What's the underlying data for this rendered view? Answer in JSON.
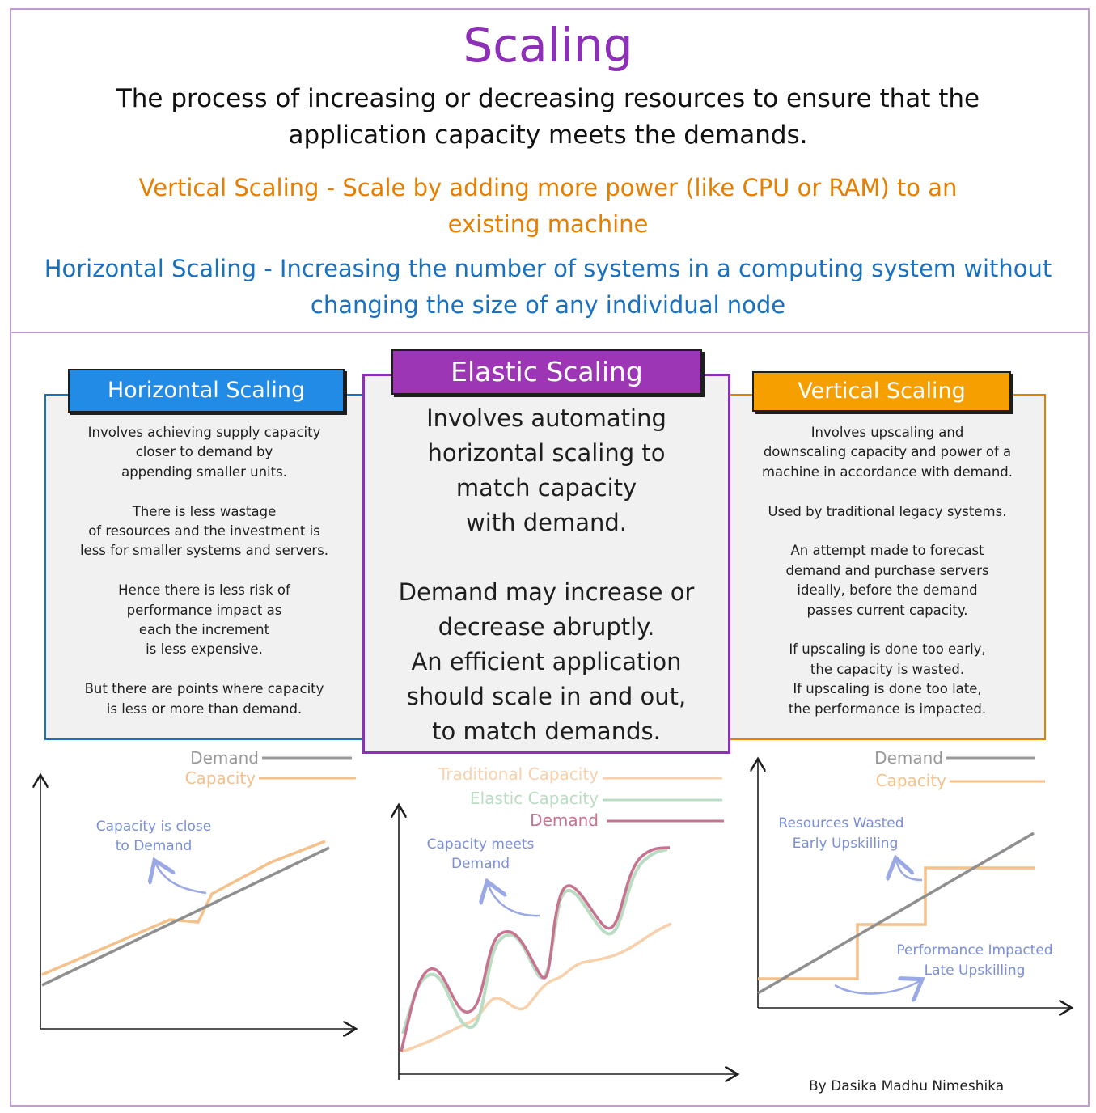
{
  "title": "Scaling",
  "subtitle": "The process of increasing or decreasing resources to ensure that the application capacity meets the demands.",
  "vertical_definition": "Vertical Scaling - Scale by adding more power (like CPU or RAM) to an existing machine",
  "horizontal_definition": "Horizontal Scaling - Increasing the number of systems in a computing system without changing the size of any individual node",
  "colors": {
    "accent": "#8e2fb8",
    "horizontal": "#1971c2",
    "vertical": "#e67e00",
    "demand": "#999999",
    "capacity": "#f5c08a",
    "elastic": "#b9dcc2",
    "elastic_demand": "#c7728f",
    "note": "#7b8fd8"
  },
  "panels": {
    "horizontal": {
      "label": "Horizontal Scaling",
      "body": "Involves achieving supply capacity\ncloser to demand by\nappending smaller units.\n\nThere is less wastage\nof resources and  the investment is\nless for smaller systems and servers.\n\nHence there is less risk of\nperformance impact as\neach the increment\nis less expensive.\n\nBut there are points where capacity\nis less or more than demand."
    },
    "elastic": {
      "label": "Elastic Scaling",
      "body": "Involves automating\nhorizontal scaling to\nmatch capacity\nwith demand.\n\nDemand may increase or\ndecrease abruptly.\nAn efficient application\nshould scale in and out,\nto match demands."
    },
    "vertical": {
      "label": "Vertical Scaling",
      "body": "Involves upscaling and\ndownscaling capacity and power of a\nmachine in accordance with demand.\n\nUsed by traditional legacy systems.\n\nAn attempt made to forecast\ndemand and purchase servers\nideally, before the demand\npasses current capacity.\n\nIf upscaling is done too early,\nthe capacity is wasted.\nIf upscaling is done too late,\nthe performance is impacted."
    }
  },
  "charts": {
    "horizontal": {
      "legend_demand": "Demand",
      "legend_capacity": "Capacity",
      "note_line1": "Capacity is close",
      "note_line2": "to Demand"
    },
    "elastic": {
      "legend_traditional": "Traditional Capacity",
      "legend_elastic": "Elastic Capacity",
      "legend_demand": "Demand",
      "note_line1": "Capacity meets",
      "note_line2": "Demand"
    },
    "vertical": {
      "legend_demand": "Demand",
      "legend_capacity": "Capacity",
      "note1_line1": "Resources Wasted",
      "note1_line2": "Early Upskilling",
      "note2_line1": "Performance Impacted",
      "note2_line2": "Late Upskilling"
    }
  },
  "author": "By Dasika Madhu Nimeshika"
}
